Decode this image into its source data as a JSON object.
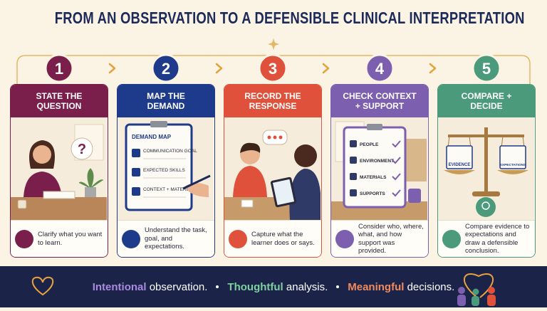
{
  "title": "FROM AN OBSERVATION TO A DEFENSIBLE CLINICAL INTERPRETATION",
  "steps": [
    {
      "number": 1,
      "title": "STATE THE QUESTION",
      "description": "Clarify what you want to learn.",
      "color": "#7a1f4b",
      "illustration": {
        "bubble": "?"
      }
    },
    {
      "number": 2,
      "title": "MAP THE DEMAND",
      "description": "Understand the task, goal, and expectations.",
      "color": "#1e3a8a",
      "illustration": {
        "heading": "DEMAND MAP",
        "items": [
          "COMMUNICATION GOAL",
          "EXPECTED SKILLS",
          "CONTEXT + MATERIALS"
        ]
      }
    },
    {
      "number": 3,
      "title": "RECORD THE RESPONSE",
      "description": "Capture what the learner does or says.",
      "color": "#e0513b"
    },
    {
      "number": 4,
      "title": "CHECK CONTEXT + SUPPORT",
      "description": "Consider who, where, what, and how support was provided.",
      "color": "#7c5fae",
      "illustration": {
        "items": [
          "PEOPLE",
          "ENVIRONMENT",
          "MATERIALS",
          "SUPPORTS"
        ]
      }
    },
    {
      "number": 5,
      "title": "COMPARE + DECIDE",
      "description": "Compare evidence to expectations and draw a defensible conclusion.",
      "color": "#4b9a7b",
      "illustration": {
        "left": "EVIDENCE",
        "right": "EXPECTATIONS"
      }
    }
  ],
  "footer": [
    {
      "highlight": "Intentional",
      "text": "observation.",
      "color": "#a98ae0"
    },
    {
      "highlight": "Thoughtful",
      "text": "analysis.",
      "color": "#7fcfa2"
    },
    {
      "highlight": "Meaningful",
      "text": "decisions.",
      "color": "#f08a5d"
    }
  ]
}
